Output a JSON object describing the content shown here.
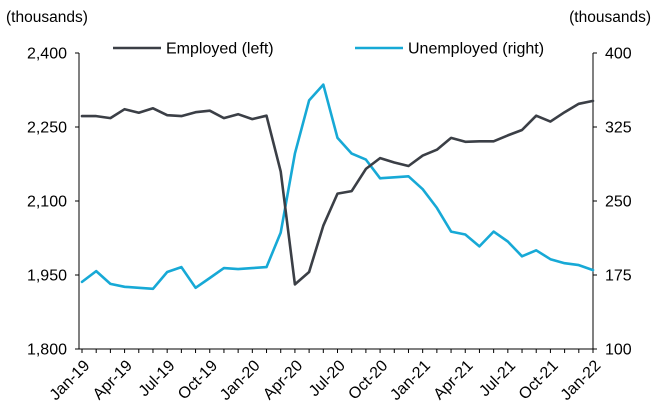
{
  "chart_data": {
    "type": "line",
    "left_axis_unit": "(thousands)",
    "right_axis_unit": "(thousands)",
    "x_tick_labels": [
      "Jan-19",
      "Apr-19",
      "Jul-19",
      "Oct-19",
      "Jan-20",
      "Apr-20",
      "Jul-20",
      "Oct-20",
      "Jan-21",
      "Apr-21",
      "Jul-21",
      "Oct-21",
      "Jan-22"
    ],
    "left_axis": {
      "ylim": [
        1800,
        2400
      ],
      "ticks": [
        1800,
        1950,
        2100,
        2250,
        2400
      ],
      "tick_labels": [
        "1,800",
        "1,950",
        "2,100",
        "2,250",
        "2,400"
      ]
    },
    "right_axis": {
      "ylim": [
        100,
        400
      ],
      "ticks": [
        100,
        175,
        250,
        325,
        400
      ],
      "tick_labels": [
        "100",
        "175",
        "250",
        "325",
        "400"
      ]
    },
    "x": [
      "2019-01",
      "2019-02",
      "2019-03",
      "2019-04",
      "2019-05",
      "2019-06",
      "2019-07",
      "2019-08",
      "2019-09",
      "2019-10",
      "2019-11",
      "2019-12",
      "2020-01",
      "2020-02",
      "2020-03",
      "2020-04",
      "2020-05",
      "2020-06",
      "2020-07",
      "2020-08",
      "2020-09",
      "2020-10",
      "2020-11",
      "2020-12",
      "2021-01",
      "2021-02",
      "2021-03",
      "2021-04",
      "2021-05",
      "2021-06",
      "2021-07",
      "2021-08",
      "2021-09",
      "2021-10",
      "2021-11",
      "2021-12",
      "2022-01"
    ],
    "series": [
      {
        "name": "Employed (left)",
        "axis": "left",
        "color": "#3b3f46",
        "values": [
          2272,
          2272,
          2268,
          2286,
          2279,
          2288,
          2274,
          2272,
          2280,
          2283,
          2268,
          2276,
          2266,
          2273,
          2160,
          1931,
          1956,
          2050,
          2115,
          2120,
          2165,
          2187,
          2178,
          2171,
          2192,
          2204,
          2228,
          2220,
          2221,
          2221,
          2233,
          2244,
          2273,
          2261,
          2280,
          2297,
          2303
        ]
      },
      {
        "name": "Unemployed (right)",
        "axis": "right",
        "color": "#17a9d6",
        "values": [
          168,
          179,
          166,
          163,
          162,
          161,
          178,
          183,
          162,
          172,
          182,
          181,
          182,
          183,
          218,
          298,
          352,
          368,
          314,
          298,
          292,
          273,
          274,
          275,
          262,
          243,
          219,
          216,
          204,
          219,
          209,
          194,
          200,
          191,
          187,
          185,
          180
        ]
      }
    ],
    "legend_position": "top"
  }
}
